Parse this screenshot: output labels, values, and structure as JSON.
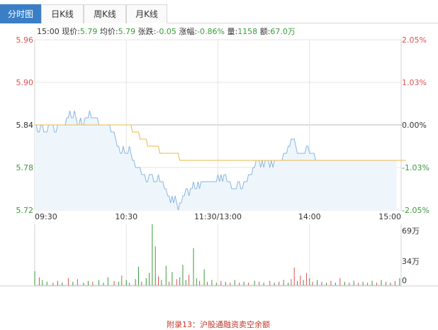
{
  "tabs": [
    {
      "label": "分时图",
      "active": true
    },
    {
      "label": "日K线",
      "active": false
    },
    {
      "label": "周K线",
      "active": false
    },
    {
      "label": "月K线",
      "active": false
    }
  ],
  "info": {
    "time": "15:00",
    "price_label": "现价:",
    "price": "5.79",
    "avg_label": "均价:",
    "avg": "5.79",
    "change_label": "张跌:",
    "change": "-0.05",
    "pct_label": "涨幅:",
    "pct": "-0.86%",
    "vol_label": "量:",
    "vol": "1158",
    "amount_label": "额:",
    "amount": "67.0万"
  },
  "colors": {
    "up": "#d9534f",
    "down": "#3a9a3a",
    "price_line": "#8ab6e0",
    "avg_line": "#e8b84a",
    "area_fill": "#eef6fc",
    "grid": "#e4e4e4",
    "tab_active": "#3a7fc6"
  },
  "chart_data": {
    "type": "line",
    "title": "",
    "x_ticks": [
      "09:30",
      "10:30",
      "11:30/13:00",
      "14:00",
      "15:00"
    ],
    "y_left_ticks": [
      "5.96",
      "5.90",
      "5.84",
      "5.78",
      "5.72"
    ],
    "y_right_ticks": [
      "2.05%",
      "1.03%",
      "0.00%",
      "-1.03%",
      "-2.05%"
    ],
    "y_left_range": [
      5.72,
      5.96
    ],
    "prev_close": 5.84,
    "minutes": 240,
    "series": [
      {
        "name": "",
        "values": [
          5.84,
          5.84,
          5.83,
          5.83,
          5.84,
          5.84,
          5.83,
          5.83,
          5.83,
          5.84,
          5.84,
          5.84,
          5.84,
          5.83,
          5.83,
          5.84,
          5.84,
          5.84,
          5.84,
          5.84,
          5.84,
          5.85,
          5.85,
          5.86,
          5.85,
          5.85,
          5.86,
          5.85,
          5.84,
          5.84,
          5.85,
          5.84,
          5.84,
          5.85,
          5.85,
          5.85,
          5.86,
          5.85,
          5.85,
          5.85,
          5.85,
          5.85,
          5.84,
          5.84,
          5.84,
          5.84,
          5.84,
          5.84,
          5.84,
          5.84,
          5.83,
          5.83,
          5.83,
          5.82,
          5.81,
          5.81,
          5.8,
          5.8,
          5.81,
          5.8,
          5.8,
          5.8,
          5.81,
          5.8,
          5.79,
          5.79,
          5.78,
          5.78,
          5.78,
          5.78,
          5.77,
          5.77,
          5.77,
          5.76,
          5.76,
          5.77,
          5.77,
          5.77,
          5.76,
          5.76,
          5.76,
          5.77,
          5.76,
          5.76,
          5.76,
          5.75,
          5.75,
          5.74,
          5.74,
          5.73,
          5.74,
          5.73,
          5.74,
          5.73,
          5.72,
          5.73,
          5.73,
          5.74,
          5.74,
          5.75,
          5.75,
          5.74,
          5.75,
          5.75,
          5.76,
          5.75,
          5.75,
          5.76,
          5.75,
          5.76,
          5.76,
          5.76,
          5.76,
          5.76,
          5.76,
          5.76,
          5.76,
          5.76,
          5.76,
          5.76,
          5.77,
          5.76,
          5.77,
          5.76,
          5.77,
          5.77,
          5.76,
          5.76,
          5.76,
          5.75,
          5.75,
          5.75,
          5.75,
          5.76,
          5.76,
          5.75,
          5.75,
          5.76,
          5.76,
          5.76,
          5.77,
          5.77,
          5.77,
          5.78,
          5.78,
          5.79,
          5.79,
          5.79,
          5.78,
          5.79,
          5.78,
          5.79,
          5.79,
          5.79,
          5.78,
          5.79,
          5.78,
          5.79,
          5.79,
          5.79,
          5.79,
          5.79,
          5.79,
          5.8,
          5.8,
          5.8,
          5.81,
          5.81,
          5.82,
          5.82,
          5.82,
          5.81,
          5.8,
          5.8,
          5.8,
          5.8,
          5.8,
          5.8,
          5.81,
          5.81,
          5.8,
          5.8,
          5.8,
          5.8,
          5.79,
          5.79,
          5.79,
          5.79,
          5.79,
          5.79,
          5.79,
          5.79,
          5.79,
          5.79,
          5.79,
          5.79,
          5.79,
          5.79,
          5.79,
          5.79,
          5.79,
          5.79,
          5.79,
          5.79,
          5.79,
          5.79,
          5.79,
          5.79,
          5.79,
          5.79,
          5.79,
          5.79,
          5.79,
          5.79,
          5.79,
          5.79,
          5.79,
          5.79,
          5.79,
          5.79,
          5.79,
          5.79,
          5.79,
          5.79,
          5.79,
          5.79,
          5.79,
          5.79,
          5.79,
          5.79,
          5.79,
          5.79,
          5.79,
          5.79,
          5.79,
          5.79,
          5.79,
          5.79
        ]
      },
      {
        "name": "",
        "values": [
          5.84,
          5.84,
          5.84,
          5.84,
          5.84,
          5.84,
          5.84,
          5.84,
          5.84,
          5.84,
          5.84,
          5.84,
          5.84,
          5.84,
          5.84,
          5.84,
          5.84,
          5.84,
          5.84,
          5.84,
          5.84,
          5.84,
          5.84,
          5.84,
          5.84,
          5.84,
          5.84,
          5.84,
          5.84,
          5.84,
          5.84,
          5.84,
          5.84,
          5.84,
          5.84,
          5.84,
          5.84,
          5.84,
          5.84,
          5.84,
          5.84,
          5.84,
          5.84,
          5.84,
          5.84,
          5.84,
          5.84,
          5.84,
          5.84,
          5.84,
          5.84,
          5.84,
          5.84,
          5.84,
          5.84,
          5.84,
          5.84,
          5.84,
          5.84,
          5.84,
          5.84,
          5.84,
          5.84,
          5.84,
          5.83,
          5.83,
          5.83,
          5.83,
          5.83,
          5.82,
          5.82,
          5.82,
          5.82,
          5.82,
          5.81,
          5.81,
          5.81,
          5.81,
          5.81,
          5.81,
          5.81,
          5.81,
          5.8,
          5.8,
          5.8,
          5.8,
          5.8,
          5.8,
          5.8,
          5.8,
          5.8,
          5.8,
          5.8,
          5.8,
          5.8,
          5.79,
          5.79,
          5.79,
          5.79,
          5.79,
          5.79,
          5.79,
          5.79,
          5.79,
          5.79,
          5.79,
          5.79,
          5.79,
          5.79,
          5.79,
          5.79,
          5.79,
          5.79,
          5.79,
          5.79,
          5.79,
          5.79,
          5.79,
          5.79,
          5.79,
          5.79,
          5.79,
          5.79,
          5.79,
          5.79,
          5.79,
          5.79,
          5.79,
          5.79,
          5.79,
          5.79,
          5.79,
          5.79,
          5.79,
          5.79,
          5.79,
          5.79,
          5.79,
          5.79,
          5.79,
          5.79,
          5.79,
          5.79,
          5.79,
          5.79,
          5.79,
          5.79,
          5.79,
          5.79,
          5.79,
          5.79,
          5.79,
          5.79,
          5.79,
          5.79,
          5.79,
          5.79,
          5.79,
          5.79,
          5.79,
          5.79,
          5.79,
          5.79,
          5.79,
          5.79,
          5.79,
          5.79,
          5.79,
          5.79,
          5.79,
          5.79,
          5.79,
          5.79,
          5.79,
          5.79,
          5.79,
          5.79,
          5.79,
          5.79,
          5.79,
          5.79,
          5.79,
          5.79,
          5.79,
          5.79,
          5.79,
          5.79,
          5.79,
          5.79,
          5.79,
          5.79,
          5.79,
          5.79,
          5.79,
          5.79,
          5.79,
          5.79,
          5.79,
          5.79,
          5.79,
          5.79,
          5.79,
          5.79,
          5.79,
          5.79,
          5.79,
          5.79,
          5.79,
          5.79,
          5.79,
          5.79,
          5.79,
          5.79,
          5.79,
          5.79,
          5.79,
          5.79,
          5.79,
          5.79,
          5.79,
          5.79,
          5.79,
          5.79,
          5.79,
          5.79,
          5.79,
          5.79,
          5.79,
          5.79,
          5.79,
          5.79,
          5.79,
          5.79,
          5.79,
          5.79,
          5.79,
          5.79,
          5.79,
          5.79,
          5.79,
          5.79,
          5.79,
          5.79,
          5.79
        ]
      }
    ],
    "volume": {
      "y_ticks": [
        "69万",
        "34万",
        "0"
      ],
      "max": 69,
      "bars": [
        {
          "m": 0,
          "v": 16,
          "c": "down"
        },
        {
          "m": 3,
          "v": 9,
          "c": "up"
        },
        {
          "m": 5,
          "v": 6,
          "c": "down"
        },
        {
          "m": 8,
          "v": 4,
          "c": "down"
        },
        {
          "m": 12,
          "v": 3,
          "c": "up"
        },
        {
          "m": 15,
          "v": 5,
          "c": "down"
        },
        {
          "m": 18,
          "v": 3,
          "c": "down"
        },
        {
          "m": 22,
          "v": 8,
          "c": "up"
        },
        {
          "m": 25,
          "v": 4,
          "c": "down"
        },
        {
          "m": 28,
          "v": 7,
          "c": "up"
        },
        {
          "m": 32,
          "v": 3,
          "c": "down"
        },
        {
          "m": 35,
          "v": 5,
          "c": "down"
        },
        {
          "m": 38,
          "v": 4,
          "c": "up"
        },
        {
          "m": 42,
          "v": 6,
          "c": "down"
        },
        {
          "m": 45,
          "v": 3,
          "c": "down"
        },
        {
          "m": 48,
          "v": 9,
          "c": "down"
        },
        {
          "m": 52,
          "v": 5,
          "c": "up"
        },
        {
          "m": 55,
          "v": 4,
          "c": "down"
        },
        {
          "m": 57,
          "v": 11,
          "c": "up"
        },
        {
          "m": 60,
          "v": 6,
          "c": "down"
        },
        {
          "m": 62,
          "v": 3,
          "c": "up"
        },
        {
          "m": 66,
          "v": 7,
          "c": "down"
        },
        {
          "m": 68,
          "v": 21,
          "c": "down"
        },
        {
          "m": 70,
          "v": 4,
          "c": "up"
        },
        {
          "m": 73,
          "v": 8,
          "c": "down"
        },
        {
          "m": 75,
          "v": 14,
          "c": "down"
        },
        {
          "m": 77,
          "v": 69,
          "c": "down"
        },
        {
          "m": 79,
          "v": 44,
          "c": "down"
        },
        {
          "m": 81,
          "v": 10,
          "c": "up"
        },
        {
          "m": 83,
          "v": 6,
          "c": "down"
        },
        {
          "m": 86,
          "v": 22,
          "c": "down"
        },
        {
          "m": 88,
          "v": 4,
          "c": "up"
        },
        {
          "m": 90,
          "v": 15,
          "c": "down"
        },
        {
          "m": 93,
          "v": 7,
          "c": "up"
        },
        {
          "m": 95,
          "v": 9,
          "c": "down"
        },
        {
          "m": 97,
          "v": 23,
          "c": "down"
        },
        {
          "m": 99,
          "v": 6,
          "c": "down"
        },
        {
          "m": 101,
          "v": 12,
          "c": "up"
        },
        {
          "m": 104,
          "v": 42,
          "c": "down"
        },
        {
          "m": 106,
          "v": 8,
          "c": "down"
        },
        {
          "m": 108,
          "v": 5,
          "c": "up"
        },
        {
          "m": 111,
          "v": 18,
          "c": "down"
        },
        {
          "m": 113,
          "v": 4,
          "c": "up"
        },
        {
          "m": 116,
          "v": 6,
          "c": "down"
        },
        {
          "m": 119,
          "v": 3,
          "c": "down"
        },
        {
          "m": 122,
          "v": 5,
          "c": "up"
        },
        {
          "m": 125,
          "v": 4,
          "c": "down"
        },
        {
          "m": 128,
          "v": 3,
          "c": "up"
        },
        {
          "m": 131,
          "v": 6,
          "c": "down"
        },
        {
          "m": 134,
          "v": 3,
          "c": "up"
        },
        {
          "m": 137,
          "v": 4,
          "c": "down"
        },
        {
          "m": 140,
          "v": 3,
          "c": "up"
        },
        {
          "m": 144,
          "v": 5,
          "c": "down"
        },
        {
          "m": 147,
          "v": 4,
          "c": "up"
        },
        {
          "m": 150,
          "v": 3,
          "c": "down"
        },
        {
          "m": 154,
          "v": 5,
          "c": "up"
        },
        {
          "m": 157,
          "v": 3,
          "c": "down"
        },
        {
          "m": 160,
          "v": 4,
          "c": "up"
        },
        {
          "m": 163,
          "v": 6,
          "c": "down"
        },
        {
          "m": 166,
          "v": 3,
          "c": "down"
        },
        {
          "m": 168,
          "v": 7,
          "c": "up"
        },
        {
          "m": 170,
          "v": 20,
          "c": "up"
        },
        {
          "m": 172,
          "v": 5,
          "c": "down"
        },
        {
          "m": 174,
          "v": 11,
          "c": "up"
        },
        {
          "m": 176,
          "v": 6,
          "c": "down"
        },
        {
          "m": 178,
          "v": 14,
          "c": "up"
        },
        {
          "m": 180,
          "v": 8,
          "c": "down"
        },
        {
          "m": 182,
          "v": 4,
          "c": "up"
        },
        {
          "m": 185,
          "v": 6,
          "c": "down"
        },
        {
          "m": 188,
          "v": 4,
          "c": "up"
        },
        {
          "m": 191,
          "v": 3,
          "c": "down"
        },
        {
          "m": 194,
          "v": 5,
          "c": "up"
        },
        {
          "m": 197,
          "v": 3,
          "c": "down"
        },
        {
          "m": 200,
          "v": 8,
          "c": "up"
        },
        {
          "m": 203,
          "v": 4,
          "c": "down"
        },
        {
          "m": 206,
          "v": 3,
          "c": "up"
        },
        {
          "m": 209,
          "v": 5,
          "c": "down"
        },
        {
          "m": 212,
          "v": 3,
          "c": "up"
        },
        {
          "m": 215,
          "v": 4,
          "c": "down"
        },
        {
          "m": 218,
          "v": 3,
          "c": "up"
        },
        {
          "m": 221,
          "v": 5,
          "c": "down"
        },
        {
          "m": 224,
          "v": 3,
          "c": "up"
        },
        {
          "m": 227,
          "v": 6,
          "c": "down"
        },
        {
          "m": 230,
          "v": 4,
          "c": "up"
        },
        {
          "m": 233,
          "v": 3,
          "c": "down"
        },
        {
          "m": 236,
          "v": 5,
          "c": "up"
        },
        {
          "m": 239,
          "v": 8,
          "c": "down"
        }
      ]
    }
  },
  "footer": {
    "text": "附录13：沪股通融资卖空余额"
  }
}
